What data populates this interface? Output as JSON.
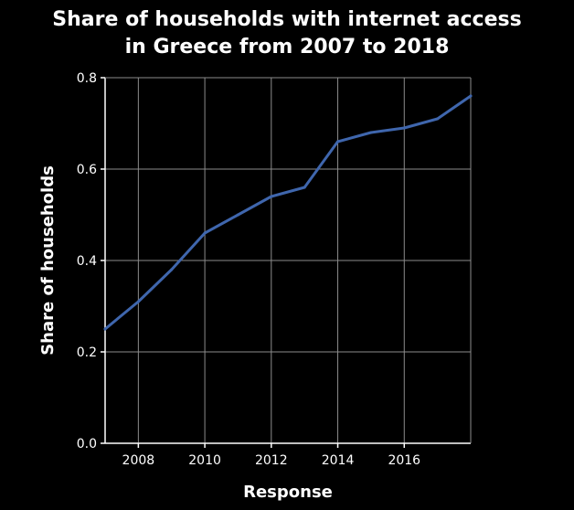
{
  "chart_data": {
    "type": "line",
    "title_lines": [
      "Share of households with internet access",
      "in Greece from 2007 to 2018"
    ],
    "xlabel": "Response",
    "ylabel": "Share of households",
    "xlim": [
      2007,
      2018
    ],
    "ylim": [
      0,
      0.8
    ],
    "x_ticks": [
      2008,
      2010,
      2012,
      2014,
      2016
    ],
    "x_tick_labels": [
      "2008",
      "2010",
      "2012",
      "2014",
      "2016"
    ],
    "y_ticks": [
      0,
      0.2,
      0.4,
      0.6,
      0.8
    ],
    "y_tick_labels": [
      "0.0",
      "0.2",
      "0.4",
      "0.6",
      "0.8"
    ],
    "grid": true,
    "series": [
      {
        "x": [
          2007,
          2008,
          2009,
          2010,
          2011,
          2012,
          2013,
          2014,
          2015,
          2016,
          2017,
          2018
        ],
        "values": [
          0.25,
          0.31,
          0.38,
          0.46,
          0.5,
          0.54,
          0.56,
          0.66,
          0.68,
          0.69,
          0.71,
          0.76
        ]
      }
    ]
  },
  "colors": {
    "background": "#000000",
    "text": "#ffffff",
    "grid": "#8c8c8c",
    "axis": "#ffffff",
    "line": "#3f66ad"
  }
}
